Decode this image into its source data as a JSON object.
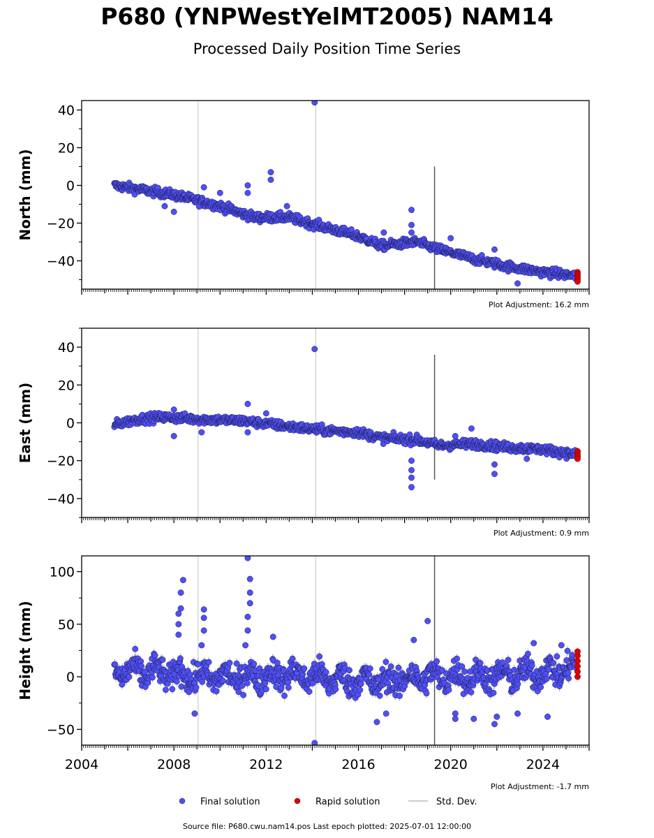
{
  "title": "P680 (YNPWestYelMT2005) NAM14",
  "subtitle": "Processed Daily Position Time Series",
  "source_line": "Source file: P680.cwu.nam14.pos  Last epoch plotted: 2025-07-01 12:00:00",
  "colors": {
    "final": "#4f4ff5",
    "final_edge": "#1a1a40",
    "rapid": "#e00000",
    "stddev": "#bbbbbb",
    "axis": "#000000"
  },
  "legend": {
    "final": "Final solution",
    "rapid": "Rapid solution",
    "stddev": "Std. Dev."
  },
  "chart_data": [
    {
      "type": "scatter",
      "ylabel": "North (mm)",
      "adjustment": "Plot Adjustment: 16.2 mm",
      "xlim": [
        2004,
        2026
      ],
      "ylim": [
        -55,
        45
      ],
      "yticks": [
        -40,
        -20,
        0,
        20,
        40
      ],
      "ytick_labels": [
        "−40",
        "−20",
        "0",
        "20",
        "40"
      ],
      "trend": [
        [
          2005.4,
          0
        ],
        [
          2008,
          -5
        ],
        [
          2010,
          -11
        ],
        [
          2011.5,
          -17
        ],
        [
          2013,
          -17
        ],
        [
          2014.5,
          -22
        ],
        [
          2016,
          -27
        ],
        [
          2017,
          -32
        ],
        [
          2018.5,
          -30
        ],
        [
          2019.5,
          -34
        ],
        [
          2021,
          -39
        ],
        [
          2022.5,
          -43
        ],
        [
          2024,
          -46
        ],
        [
          2025.5,
          -48
        ]
      ],
      "outliers": [
        [
          2008.0,
          -14
        ],
        [
          2007.6,
          -11
        ],
        [
          2009.3,
          -1
        ],
        [
          2010.0,
          -4
        ],
        [
          2011.2,
          -4
        ],
        [
          2011.2,
          0
        ],
        [
          2012.2,
          7
        ],
        [
          2012.2,
          3
        ],
        [
          2012.9,
          -11
        ],
        [
          2014.1,
          44
        ],
        [
          2017.1,
          -25
        ],
        [
          2018.3,
          -13
        ],
        [
          2018.3,
          -21
        ],
        [
          2018.3,
          -25
        ],
        [
          2020.0,
          -28
        ],
        [
          2021.9,
          -34
        ],
        [
          2022.9,
          -52
        ]
      ],
      "rapid": [
        [
          2025.5,
          -46
        ],
        [
          2025.5,
          -47
        ],
        [
          2025.5,
          -48
        ],
        [
          2025.5,
          -49
        ],
        [
          2025.5,
          -50
        ],
        [
          2025.5,
          -51
        ]
      ],
      "spikes": [
        [
          2009.05,
          -55,
          45
        ],
        [
          2014.15,
          -55,
          45
        ],
        [
          2019.3,
          -55,
          10
        ]
      ]
    },
    {
      "type": "scatter",
      "ylabel": "East (mm)",
      "adjustment": "Plot Adjustment: 0.9 mm",
      "xlim": [
        2004,
        2026
      ],
      "ylim": [
        -50,
        50
      ],
      "yticks": [
        -40,
        -20,
        0,
        20,
        40
      ],
      "ytick_labels": [
        "−40",
        "−20",
        "0",
        "20",
        "40"
      ],
      "trend": [
        [
          2005.4,
          -1
        ],
        [
          2006.5,
          2
        ],
        [
          2007.5,
          3
        ],
        [
          2009,
          2
        ],
        [
          2011,
          1
        ],
        [
          2013,
          -2
        ],
        [
          2014.5,
          -4
        ],
        [
          2016,
          -5
        ],
        [
          2017,
          -8
        ],
        [
          2018.5,
          -9
        ],
        [
          2019.5,
          -12
        ],
        [
          2021,
          -11
        ],
        [
          2022.5,
          -13
        ],
        [
          2024,
          -14
        ],
        [
          2025.5,
          -17
        ]
      ],
      "outliers": [
        [
          2008.0,
          -7
        ],
        [
          2008.0,
          7
        ],
        [
          2009.2,
          -5
        ],
        [
          2011.2,
          10
        ],
        [
          2011.2,
          -5
        ],
        [
          2012.0,
          5
        ],
        [
          2014.1,
          39
        ],
        [
          2018.3,
          -20
        ],
        [
          2018.3,
          -25
        ],
        [
          2018.3,
          -29
        ],
        [
          2018.3,
          -34
        ],
        [
          2020.2,
          -7
        ],
        [
          2020.9,
          -3
        ],
        [
          2021.9,
          -22
        ],
        [
          2021.9,
          -27
        ],
        [
          2023.3,
          -19
        ]
      ],
      "rapid": [
        [
          2025.5,
          -15
        ],
        [
          2025.5,
          -16
        ],
        [
          2025.5,
          -17
        ],
        [
          2025.5,
          -18
        ],
        [
          2025.5,
          -19
        ]
      ],
      "spikes": [
        [
          2009.05,
          -50,
          50
        ],
        [
          2014.15,
          -50,
          50
        ],
        [
          2019.3,
          -30,
          36
        ]
      ]
    },
    {
      "type": "scatter",
      "ylabel": "Height (mm)",
      "adjustment": "Plot Adjustment: -1.7 mm",
      "xlim": [
        2004,
        2026
      ],
      "ylim": [
        -65,
        115
      ],
      "yticks": [
        -50,
        0,
        50,
        100
      ],
      "ytick_labels": [
        "−50",
        "0",
        "50",
        "100"
      ],
      "xticks": [
        2004,
        2008,
        2012,
        2016,
        2020,
        2024
      ],
      "xtick_labels": [
        "2004",
        "2008",
        "2012",
        "2016",
        "2020",
        "2024"
      ],
      "trend": [
        [
          2005.4,
          5
        ],
        [
          2007,
          5
        ],
        [
          2009,
          0
        ],
        [
          2011,
          0
        ],
        [
          2013,
          2
        ],
        [
          2015,
          -2
        ],
        [
          2017,
          -5
        ],
        [
          2019,
          0
        ],
        [
          2021,
          0
        ],
        [
          2023,
          2
        ],
        [
          2025.5,
          8
        ]
      ],
      "outliers": [
        [
          2008.2,
          40
        ],
        [
          2008.2,
          50
        ],
        [
          2008.2,
          60
        ],
        [
          2008.3,
          65
        ],
        [
          2008.3,
          80
        ],
        [
          2008.4,
          92
        ],
        [
          2009.3,
          64
        ],
        [
          2009.3,
          56
        ],
        [
          2009.3,
          44
        ],
        [
          2009.2,
          30
        ],
        [
          2008.9,
          -35
        ],
        [
          2011.2,
          113
        ],
        [
          2011.3,
          93
        ],
        [
          2011.3,
          80
        ],
        [
          2011.3,
          70
        ],
        [
          2011.2,
          57
        ],
        [
          2011.2,
          44
        ],
        [
          2011.1,
          30
        ],
        [
          2012.3,
          38
        ],
        [
          2014.1,
          -63
        ],
        [
          2016.8,
          -43
        ],
        [
          2017.2,
          -35
        ],
        [
          2018.4,
          35
        ],
        [
          2019.0,
          53
        ],
        [
          2020.2,
          -35
        ],
        [
          2020.2,
          -40
        ],
        [
          2021.0,
          -40
        ],
        [
          2021.9,
          -45
        ],
        [
          2022.0,
          -38
        ],
        [
          2022.9,
          -35
        ],
        [
          2023.6,
          32
        ],
        [
          2024.2,
          -38
        ],
        [
          2024.8,
          30
        ]
      ],
      "rapid": [
        [
          2025.5,
          0
        ],
        [
          2025.5,
          5
        ],
        [
          2025.5,
          10
        ],
        [
          2025.5,
          15
        ],
        [
          2025.5,
          20
        ],
        [
          2025.5,
          24
        ]
      ],
      "spikes": [
        [
          2009.05,
          -65,
          115
        ],
        [
          2014.15,
          -65,
          115
        ],
        [
          2019.3,
          -65,
          115
        ]
      ]
    }
  ]
}
